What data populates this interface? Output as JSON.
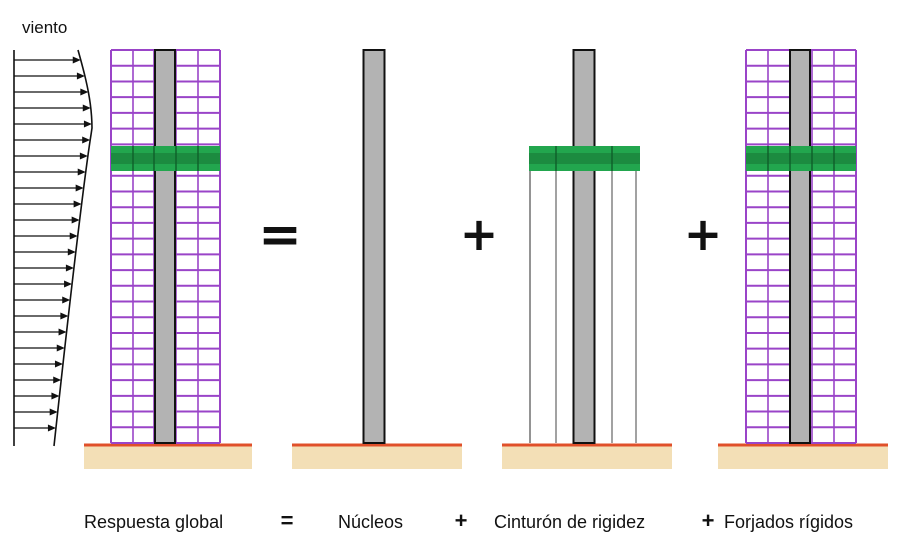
{
  "wind_label": "viento",
  "operators": {
    "equals": "=",
    "plus": "+"
  },
  "captions": {
    "global": "Respuesta global",
    "cores": "Núcleos",
    "outrigger": "Cinturón de rigidez",
    "floors": "Forjados rígidos"
  },
  "colors": {
    "floor_lines": "#9a44c8",
    "core_fill": "#b3b3b3",
    "core_stroke": "#111111",
    "outrigger_band": "#22a64e",
    "ground_line": "#e0502a",
    "ground_fill": "#f3dfb6",
    "column_lines": "#8a8a8a"
  }
}
